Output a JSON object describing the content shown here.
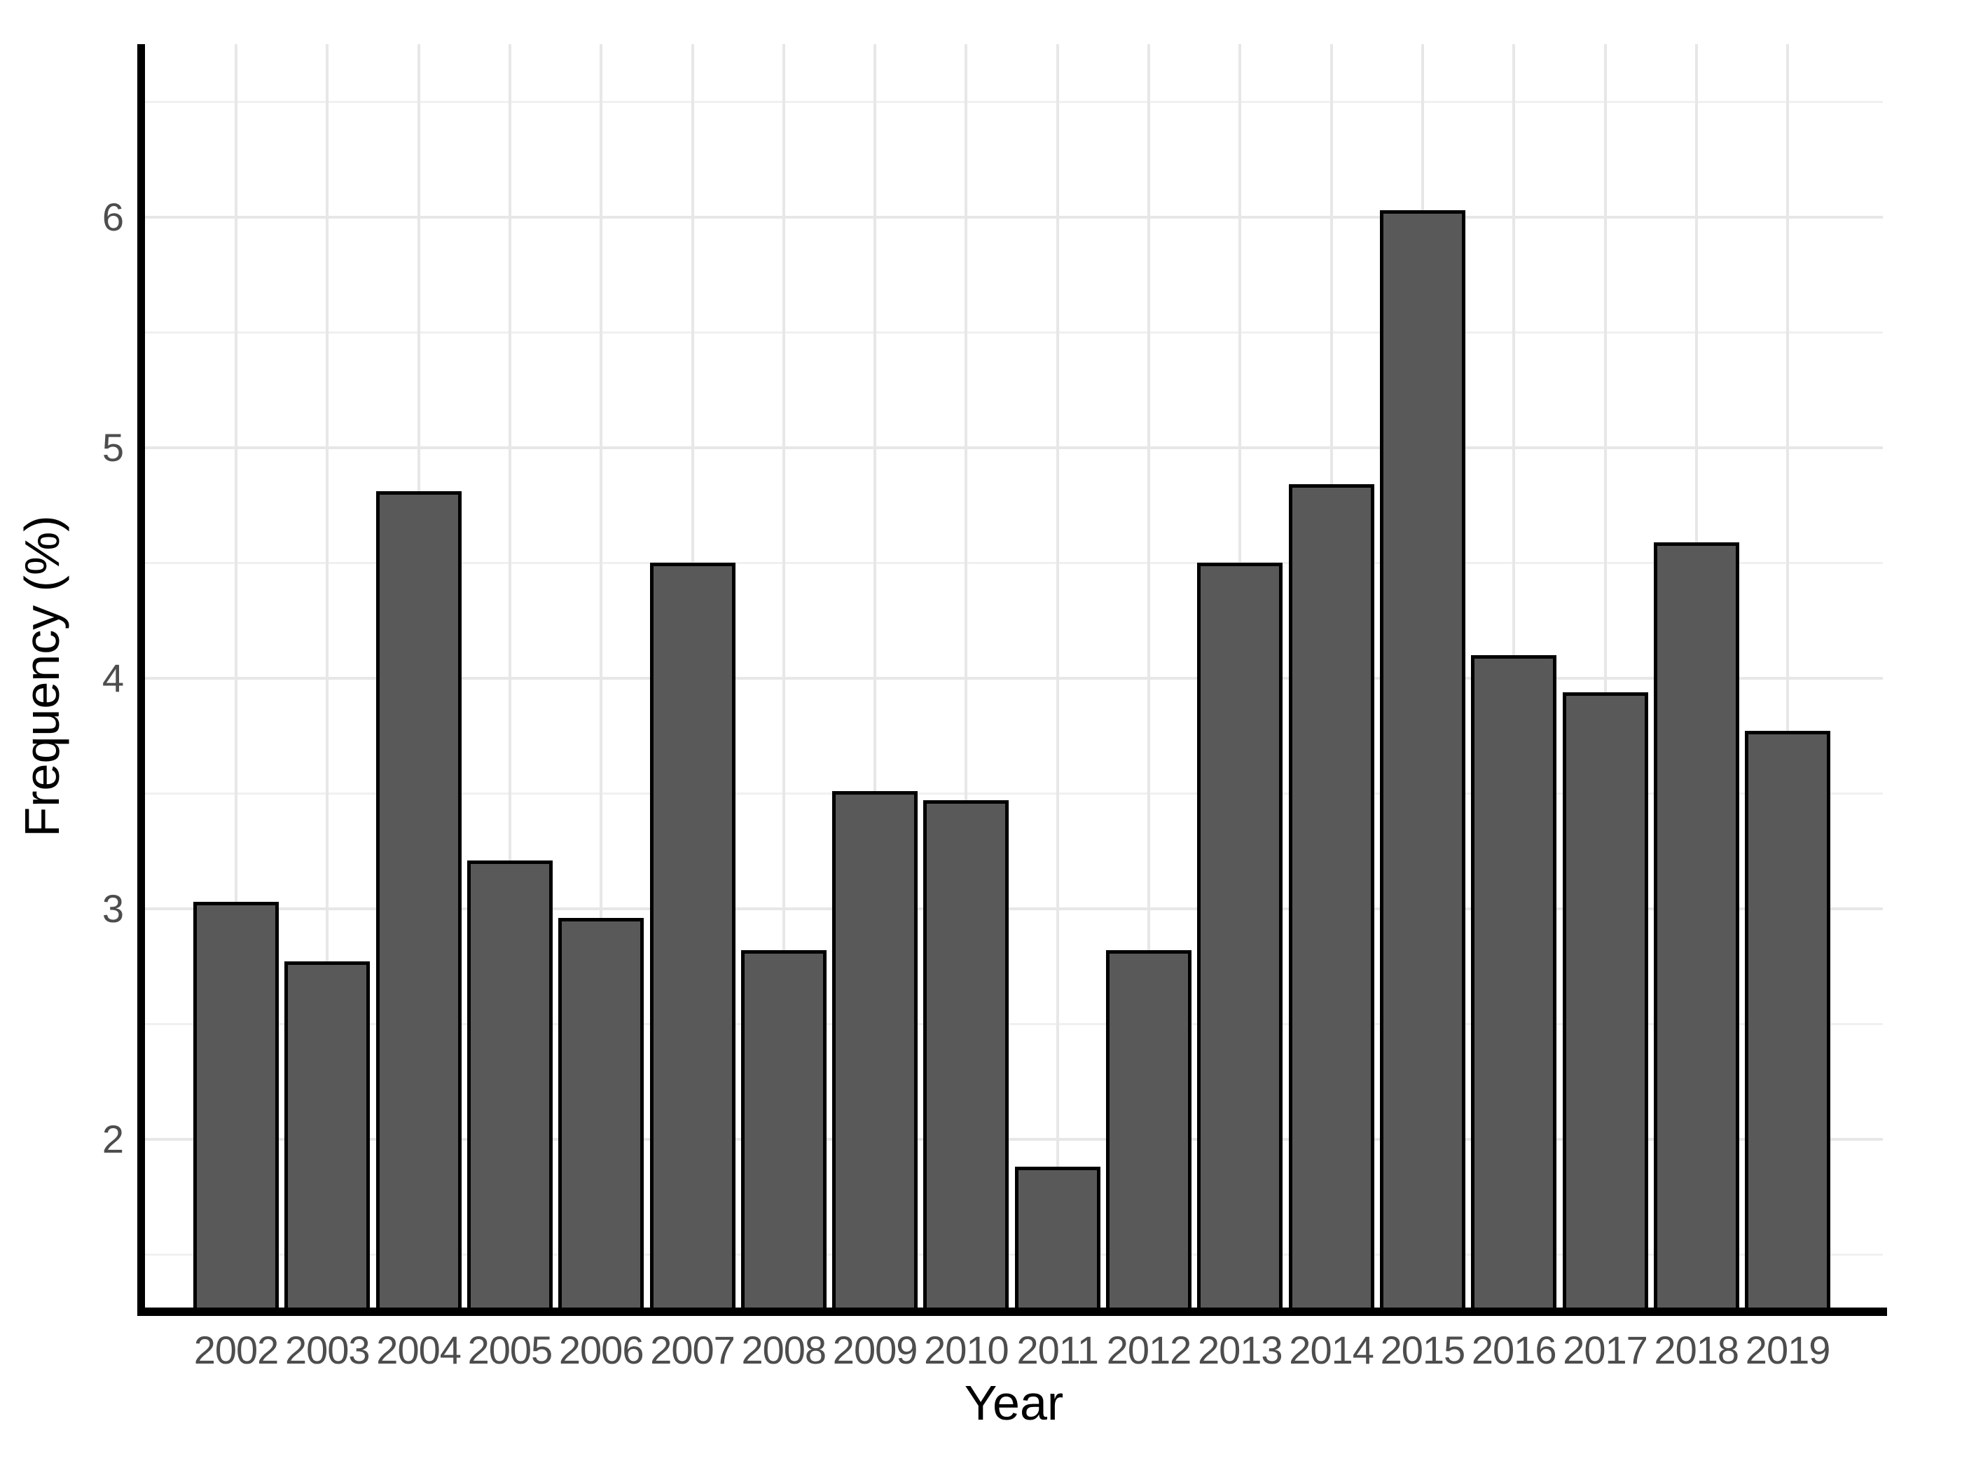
{
  "chart_data": {
    "type": "bar",
    "title": "",
    "xlabel": "Year",
    "ylabel": "Frequency (%)",
    "categories": [
      "2002",
      "2003",
      "2004",
      "2005",
      "2006",
      "2007",
      "2008",
      "2009",
      "2010",
      "2011",
      "2012",
      "2013",
      "2014",
      "2015",
      "2016",
      "2017",
      "2018",
      "2019"
    ],
    "values": [
      3.03,
      2.77,
      4.81,
      3.21,
      2.96,
      4.5,
      2.82,
      3.51,
      3.47,
      1.88,
      2.82,
      4.5,
      4.84,
      6.03,
      4.1,
      3.94,
      4.59,
      3.77
    ],
    "x_tick_labels": [
      "2002",
      "2003",
      "2004",
      "2005",
      "2006",
      "2007",
      "2008",
      "2009",
      "2010",
      "2011",
      "2012",
      "2013",
      "2014",
      "2015",
      "2016",
      "2017",
      "2018",
      "2019"
    ],
    "y_tick_labels": [
      "2",
      "3",
      "4",
      "5",
      "6"
    ],
    "y_major_ticks": [
      2,
      3,
      4,
      5,
      6
    ],
    "y_minor_ticks": [
      1.5,
      2.5,
      3.5,
      4.5,
      5.5,
      6.5
    ],
    "ylim": [
      1.27,
      6.75
    ],
    "bars_baseline": "clipped-at-axis",
    "grid": "horizontal major+minor, vertical major at category centers",
    "legend": "none",
    "colors": {
      "bar_fill": "#595959",
      "bar_stroke": "#000000",
      "grid_major": "#e7e7e7",
      "grid_minor": "#f0f0f0",
      "axis_line": "#000000",
      "tick_label": "#4d4d4d",
      "axis_title": "#000000",
      "background": "#ffffff"
    }
  }
}
